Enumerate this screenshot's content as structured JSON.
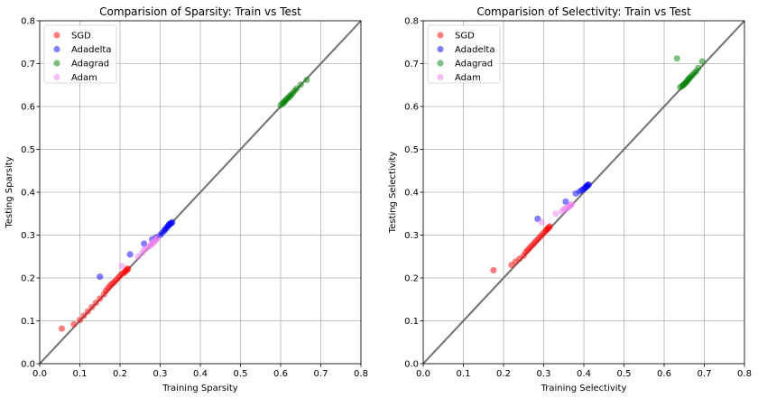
{
  "chart_data": [
    {
      "type": "scatter",
      "title": "Comparision of Sparsity: Train vs Test",
      "xlabel": "Training Sparsity",
      "ylabel": "Testing Sparsity",
      "xlim": [
        0,
        0.8
      ],
      "ylim": [
        0,
        0.8
      ],
      "xticks": [
        "0.0",
        "0.1",
        "0.2",
        "0.3",
        "0.4",
        "0.5",
        "0.6",
        "0.7",
        "0.8"
      ],
      "yticks": [
        "0.0",
        "0.1",
        "0.2",
        "0.3",
        "0.4",
        "0.5",
        "0.6",
        "0.7",
        "0.8"
      ],
      "grid": true,
      "legend_position": "top-left",
      "diagonal_line": true,
      "series": [
        {
          "name": "SGD",
          "color": "#ff0000",
          "points": [
            [
              0.055,
              0.082
            ],
            [
              0.085,
              0.092
            ],
            [
              0.1,
              0.102
            ],
            [
              0.11,
              0.112
            ],
            [
              0.12,
              0.122
            ],
            [
              0.13,
              0.132
            ],
            [
              0.14,
              0.142
            ],
            [
              0.15,
              0.152
            ],
            [
              0.16,
              0.162
            ],
            [
              0.165,
              0.17
            ],
            [
              0.17,
              0.176
            ],
            [
              0.175,
              0.182
            ],
            [
              0.18,
              0.186
            ],
            [
              0.185,
              0.19
            ],
            [
              0.19,
              0.195
            ],
            [
              0.195,
              0.2
            ],
            [
              0.2,
              0.205
            ],
            [
              0.205,
              0.21
            ],
            [
              0.21,
              0.212
            ],
            [
              0.213,
              0.215
            ],
            [
              0.216,
              0.218
            ],
            [
              0.218,
              0.22
            ],
            [
              0.22,
              0.222
            ]
          ]
        },
        {
          "name": "Adadelta",
          "color": "#0000ff",
          "points": [
            [
              0.15,
              0.203
            ],
            [
              0.225,
              0.255
            ],
            [
              0.26,
              0.28
            ],
            [
              0.28,
              0.29
            ],
            [
              0.29,
              0.295
            ],
            [
              0.3,
              0.3
            ],
            [
              0.305,
              0.305
            ],
            [
              0.31,
              0.31
            ],
            [
              0.312,
              0.313
            ],
            [
              0.315,
              0.316
            ],
            [
              0.318,
              0.319
            ],
            [
              0.32,
              0.322
            ],
            [
              0.322,
              0.324
            ],
            [
              0.324,
              0.326
            ],
            [
              0.326,
              0.327
            ],
            [
              0.328,
              0.328
            ],
            [
              0.33,
              0.33
            ]
          ]
        },
        {
          "name": "Adagrad",
          "color": "#008000",
          "points": [
            [
              0.6,
              0.603
            ],
            [
              0.605,
              0.607
            ],
            [
              0.608,
              0.609
            ],
            [
              0.61,
              0.612
            ],
            [
              0.613,
              0.615
            ],
            [
              0.616,
              0.618
            ],
            [
              0.62,
              0.621
            ],
            [
              0.623,
              0.624
            ],
            [
              0.626,
              0.627
            ],
            [
              0.63,
              0.631
            ],
            [
              0.635,
              0.637
            ],
            [
              0.64,
              0.642
            ],
            [
              0.65,
              0.651
            ],
            [
              0.665,
              0.662
            ]
          ]
        },
        {
          "name": "Adam",
          "color": "#ee82ee",
          "points": [
            [
              0.205,
              0.228
            ],
            [
              0.245,
              0.25
            ],
            [
              0.255,
              0.258
            ],
            [
              0.26,
              0.265
            ],
            [
              0.265,
              0.268
            ],
            [
              0.27,
              0.272
            ],
            [
              0.275,
              0.275
            ],
            [
              0.278,
              0.278
            ],
            [
              0.28,
              0.28
            ],
            [
              0.283,
              0.283
            ],
            [
              0.285,
              0.285
            ],
            [
              0.288,
              0.287
            ],
            [
              0.29,
              0.29
            ],
            [
              0.293,
              0.293
            ]
          ]
        }
      ]
    },
    {
      "type": "scatter",
      "title": "Comparision of Selectivity: Train vs Test",
      "xlabel": "Training Selectivity",
      "ylabel": "Testing Selectivity",
      "xlim": [
        0,
        0.8
      ],
      "ylim": [
        0,
        0.8
      ],
      "xticks": [
        "0.0",
        "0.1",
        "0.2",
        "0.3",
        "0.4",
        "0.5",
        "0.6",
        "0.7",
        "0.8"
      ],
      "yticks": [
        "0.0",
        "0.1",
        "0.2",
        "0.3",
        "0.4",
        "0.5",
        "0.6",
        "0.7",
        "0.8"
      ],
      "grid": true,
      "legend_position": "top-left",
      "diagonal_line": true,
      "series": [
        {
          "name": "SGD",
          "color": "#ff0000",
          "points": [
            [
              0.175,
              0.218
            ],
            [
              0.22,
              0.23
            ],
            [
              0.23,
              0.238
            ],
            [
              0.24,
              0.245
            ],
            [
              0.25,
              0.252
            ],
            [
              0.255,
              0.26
            ],
            [
              0.26,
              0.265
            ],
            [
              0.265,
              0.27
            ],
            [
              0.27,
              0.275
            ],
            [
              0.275,
              0.28
            ],
            [
              0.28,
              0.285
            ],
            [
              0.285,
              0.29
            ],
            [
              0.29,
              0.295
            ],
            [
              0.295,
              0.3
            ],
            [
              0.3,
              0.305
            ],
            [
              0.305,
              0.31
            ],
            [
              0.308,
              0.313
            ],
            [
              0.31,
              0.315
            ],
            [
              0.313,
              0.318
            ],
            [
              0.315,
              0.32
            ]
          ]
        },
        {
          "name": "Adadelta",
          "color": "#0000ff",
          "points": [
            [
              0.285,
              0.338
            ],
            [
              0.355,
              0.378
            ],
            [
              0.38,
              0.397
            ],
            [
              0.39,
              0.402
            ],
            [
              0.395,
              0.405
            ],
            [
              0.4,
              0.408
            ],
            [
              0.403,
              0.41
            ],
            [
              0.405,
              0.412
            ],
            [
              0.407,
              0.414
            ],
            [
              0.409,
              0.415
            ],
            [
              0.41,
              0.417
            ],
            [
              0.412,
              0.418
            ]
          ]
        },
        {
          "name": "Adagrad",
          "color": "#008000",
          "points": [
            [
              0.632,
              0.712
            ],
            [
              0.64,
              0.645
            ],
            [
              0.645,
              0.648
            ],
            [
              0.648,
              0.65
            ],
            [
              0.65,
              0.652
            ],
            [
              0.653,
              0.655
            ],
            [
              0.655,
              0.657
            ],
            [
              0.658,
              0.66
            ],
            [
              0.66,
              0.663
            ],
            [
              0.663,
              0.666
            ],
            [
              0.666,
              0.669
            ],
            [
              0.67,
              0.673
            ],
            [
              0.675,
              0.678
            ],
            [
              0.68,
              0.682
            ],
            [
              0.685,
              0.69
            ],
            [
              0.695,
              0.705
            ]
          ]
        },
        {
          "name": "Adam",
          "color": "#ee82ee",
          "points": [
            [
              0.295,
              0.33
            ],
            [
              0.33,
              0.35
            ],
            [
              0.345,
              0.355
            ],
            [
              0.35,
              0.36
            ],
            [
              0.355,
              0.362
            ],
            [
              0.36,
              0.364
            ],
            [
              0.362,
              0.366
            ],
            [
              0.365,
              0.368
            ],
            [
              0.368,
              0.37
            ],
            [
              0.37,
              0.372
            ]
          ]
        }
      ]
    }
  ]
}
